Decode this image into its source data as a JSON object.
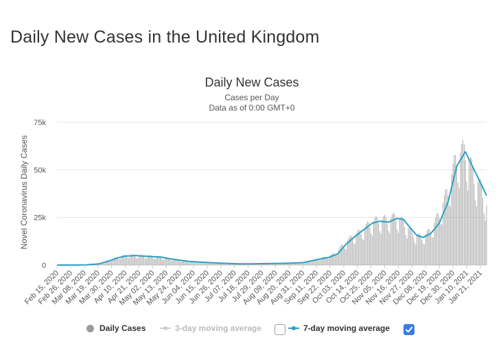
{
  "page": {
    "title": "Daily New Cases in the United Kingdom"
  },
  "chart_data": {
    "type": "bar",
    "title": "Daily New Cases",
    "subtitle_line1": "Cases per Day",
    "subtitle_line2": "Data as of 0:00 GMT+0",
    "ylabel": "Novel Coronavirus Daily Cases",
    "xlabel": "",
    "ylim": [
      0,
      75000
    ],
    "y_ticks": [
      0,
      25000,
      50000,
      75000
    ],
    "y_tick_labels": [
      "0",
      "25k",
      "50k",
      "75k"
    ],
    "grid": true,
    "x_start": "2020-02-15",
    "x_end": "2021-01-26",
    "x_ticks": [
      "2020-02-15",
      "2020-02-26",
      "2020-03-08",
      "2020-03-19",
      "2020-03-30",
      "2020-04-10",
      "2020-04-21",
      "2020-05-02",
      "2020-05-13",
      "2020-05-24",
      "2020-06-04",
      "2020-06-15",
      "2020-06-26",
      "2020-07-07",
      "2020-07-18",
      "2020-07-29",
      "2020-08-09",
      "2020-08-20",
      "2020-08-31",
      "2020-09-11",
      "2020-09-22",
      "2020-10-03",
      "2020-10-14",
      "2020-10-25",
      "2020-11-05",
      "2020-11-16",
      "2020-11-27",
      "2020-12-08",
      "2020-12-19",
      "2020-12-30",
      "2021-01-10",
      "2021-01-21"
    ],
    "x_tick_labels": [
      "Feb 15, 2020",
      "Feb 26, 2020",
      "Mar 08, 2020",
      "Mar 19, 2020",
      "Mar 30, 2020",
      "Apr 10, 2020",
      "Apr 21, 2020",
      "May 02, 2020",
      "May 13, 2020",
      "May 24, 2020",
      "Jun 04, 2020",
      "Jun 15, 2020",
      "Jun 26, 2020",
      "Jul 07, 2020",
      "Jul 18, 2020",
      "Jul 29, 2020",
      "Aug 09, 2020",
      "Aug 20, 2020",
      "Aug 31, 2020",
      "Sep 11, 2020",
      "Sep 22, 2020",
      "Oct 03, 2020",
      "Oct 14, 2020",
      "Oct 25, 2020",
      "Nov 05, 2020",
      "Nov 16, 2020",
      "Nov 27, 2020",
      "Dec 08, 2020",
      "Dec 19, 2020",
      "Dec 30, 2020",
      "Jan 10, 2021",
      "Jan 21, 2021"
    ],
    "series": [
      {
        "name": "Daily Cases",
        "kind": "bar",
        "color": "#999999",
        "weekly_points": [
          [
            "2020-02-15",
            0
          ],
          [
            "2020-02-29",
            5
          ],
          [
            "2020-03-07",
            40
          ],
          [
            "2020-03-14",
            250
          ],
          [
            "2020-03-21",
            900
          ],
          [
            "2020-03-28",
            2500
          ],
          [
            "2020-04-04",
            3900
          ],
          [
            "2020-04-11",
            5000
          ],
          [
            "2020-04-18",
            4800
          ],
          [
            "2020-04-25",
            4700
          ],
          [
            "2020-05-02",
            4500
          ],
          [
            "2020-05-09",
            4000
          ],
          [
            "2020-05-16",
            3300
          ],
          [
            "2020-05-23",
            2600
          ],
          [
            "2020-05-30",
            2100
          ],
          [
            "2020-06-06",
            1700
          ],
          [
            "2020-06-13",
            1400
          ],
          [
            "2020-06-20",
            1100
          ],
          [
            "2020-06-27",
            900
          ],
          [
            "2020-07-04",
            650
          ],
          [
            "2020-07-11",
            620
          ],
          [
            "2020-07-18",
            650
          ],
          [
            "2020-07-25",
            720
          ],
          [
            "2020-08-01",
            800
          ],
          [
            "2020-08-08",
            850
          ],
          [
            "2020-08-15",
            1000
          ],
          [
            "2020-08-22",
            1100
          ],
          [
            "2020-08-29",
            1300
          ],
          [
            "2020-09-05",
            1900
          ],
          [
            "2020-09-12",
            3200
          ],
          [
            "2020-09-19",
            4000
          ],
          [
            "2020-09-26",
            6000
          ],
          [
            "2020-10-03",
            10500
          ],
          [
            "2020-10-10",
            14500
          ],
          [
            "2020-10-17",
            17000
          ],
          [
            "2020-10-24",
            21000
          ],
          [
            "2020-10-31",
            23000
          ],
          [
            "2020-11-07",
            22800
          ],
          [
            "2020-11-14",
            24500
          ],
          [
            "2020-11-21",
            21000
          ],
          [
            "2020-11-28",
            15500
          ],
          [
            "2020-12-05",
            14000
          ],
          [
            "2020-12-12",
            17500
          ],
          [
            "2020-12-19",
            26000
          ],
          [
            "2020-12-26",
            38000
          ],
          [
            "2021-01-02",
            55000
          ],
          [
            "2021-01-09",
            58000
          ],
          [
            "2021-01-16",
            45000
          ],
          [
            "2021-01-23",
            37000
          ],
          [
            "2021-01-26",
            30000
          ]
        ]
      },
      {
        "name": "3-day moving average",
        "kind": "line",
        "visible": false,
        "color": "#cccccc"
      },
      {
        "name": "7-day moving average",
        "kind": "line",
        "visible": true,
        "color": "#2aa0c4",
        "points": [
          [
            "2020-02-15",
            0
          ],
          [
            "2020-03-01",
            10
          ],
          [
            "2020-03-10",
            100
          ],
          [
            "2020-03-20",
            650
          ],
          [
            "2020-03-28",
            2200
          ],
          [
            "2020-04-04",
            3800
          ],
          [
            "2020-04-10",
            4700
          ],
          [
            "2020-04-18",
            5000
          ],
          [
            "2020-04-25",
            4700
          ],
          [
            "2020-05-02",
            4400
          ],
          [
            "2020-05-09",
            4200
          ],
          [
            "2020-05-16",
            3300
          ],
          [
            "2020-05-23",
            2600
          ],
          [
            "2020-06-01",
            1900
          ],
          [
            "2020-06-10",
            1500
          ],
          [
            "2020-06-20",
            1200
          ],
          [
            "2020-07-01",
            850
          ],
          [
            "2020-07-10",
            650
          ],
          [
            "2020-07-20",
            650
          ],
          [
            "2020-08-01",
            750
          ],
          [
            "2020-08-10",
            850
          ],
          [
            "2020-08-20",
            1000
          ],
          [
            "2020-08-31",
            1250
          ],
          [
            "2020-09-07",
            2200
          ],
          [
            "2020-09-14",
            3200
          ],
          [
            "2020-09-21",
            4000
          ],
          [
            "2020-09-28",
            5800
          ],
          [
            "2020-10-05",
            11000
          ],
          [
            "2020-10-12",
            15000
          ],
          [
            "2020-10-19",
            18500
          ],
          [
            "2020-10-26",
            22000
          ],
          [
            "2020-11-01",
            23000
          ],
          [
            "2020-11-08",
            22500
          ],
          [
            "2020-11-15",
            24500
          ],
          [
            "2020-11-20",
            24000
          ],
          [
            "2020-11-25",
            20000
          ],
          [
            "2020-12-01",
            15500
          ],
          [
            "2020-12-06",
            14500
          ],
          [
            "2020-12-12",
            16500
          ],
          [
            "2020-12-19",
            22000
          ],
          [
            "2020-12-26",
            33000
          ],
          [
            "2021-01-02",
            52000
          ],
          [
            "2021-01-09",
            59500
          ],
          [
            "2021-01-16",
            50000
          ],
          [
            "2021-01-22",
            42000
          ],
          [
            "2021-01-26",
            36500
          ]
        ]
      }
    ],
    "legend": {
      "placement": "bottom",
      "items": [
        "Daily Cases",
        "3-day moving average",
        "7-day moving average"
      ],
      "checkboxes": {
        "3day": false,
        "7day": true
      }
    }
  }
}
